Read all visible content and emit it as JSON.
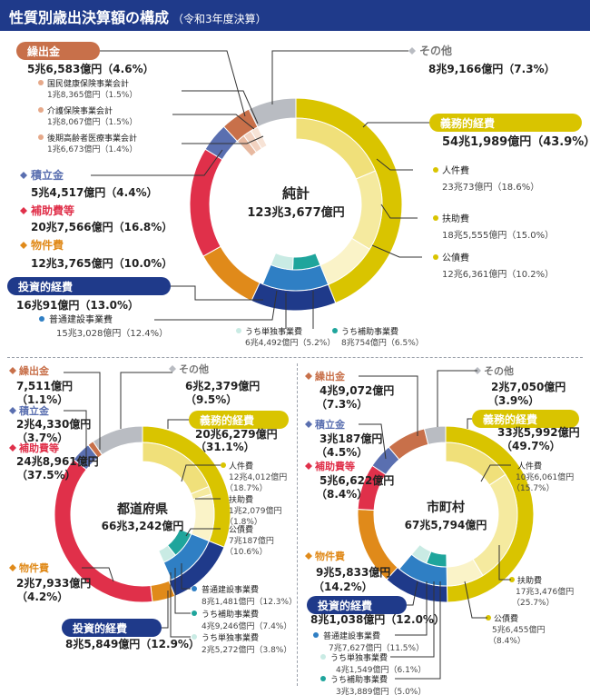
{
  "header": {
    "title": "性質別歳出決算額の構成",
    "subtitle": "（令和3年度決算）"
  },
  "colors": {
    "header": "#1f3a8a",
    "mandatory": "#d9c400",
    "mandatory_light1": "#f0e07a",
    "mandatory_light2": "#f5ea9f",
    "mandatory_light3": "#faf3c8",
    "investment": "#1f3a8a",
    "investment_light": "#2f7fc4",
    "investment_teal": "#1fa59c",
    "investment_pale": "#c9ebe4",
    "materials": "#e08a1a",
    "subsidy": "#e0304a",
    "reserve": "#5a6fb0",
    "transfer": "#c8704a",
    "transfer_light": "#e8b9a0",
    "other": "#b9bcc2"
  },
  "chart_data": [
    {
      "type": "pie",
      "name": "純計",
      "total_label": "123兆3,677億円",
      "categories": [
        "義務的経費",
        "投資的経費",
        "物件費",
        "補助費等",
        "積立金",
        "繰出金",
        "その他"
      ],
      "values": [
        43.9,
        13.0,
        10.0,
        16.8,
        4.4,
        4.6,
        7.3
      ],
      "amounts": [
        "54兆1,989億円（43.9%）",
        "16兆91億円（13.0%）",
        "12兆3,765億円（10.0%）",
        "20兆7,566億円（16.8%）",
        "5兆4,517億円（4.4%）",
        "5兆6,583億円（4.6%）",
        "8兆9,166億円（7.3%）"
      ],
      "inner_series": {
        "義務的経費": [
          {
            "name": "人件費",
            "value": 18.6,
            "amount": "23兆73億円（18.6%）"
          },
          {
            "name": "扶助費",
            "value": 15.0,
            "amount": "18兆5,555億円（15.0%）"
          },
          {
            "name": "公債費",
            "value": 10.2,
            "amount": "12兆6,361億円（10.2%）"
          }
        ],
        "投資的経費": [
          {
            "name": "普通建設事業費",
            "value": 12.4,
            "amount": "15兆3,028億円（12.4%）"
          },
          {
            "name": "うち補助事業費",
            "value": 6.5,
            "amount": "8兆754億円（6.5%）"
          },
          {
            "name": "うち単独事業費",
            "value": 5.2,
            "amount": "6兆4,492億円（5.2%）"
          }
        ],
        "繰出金": [
          {
            "name": "国民健康保険事業会計",
            "value": 1.5,
            "amount": "1兆8,365億円（1.5%）"
          },
          {
            "name": "介護保険事業会計",
            "value": 1.5,
            "amount": "1兆8,067億円（1.5%）"
          },
          {
            "name": "後期高齢者医療事業会計",
            "value": 1.4,
            "amount": "1兆6,673億円（1.4%）"
          }
        ]
      }
    },
    {
      "type": "pie",
      "name": "都道府県",
      "total_label": "66兆3,242億円",
      "categories": [
        "義務的経費",
        "投資的経費",
        "物件費",
        "補助費等",
        "積立金",
        "繰出金",
        "その他"
      ],
      "values": [
        31.1,
        12.9,
        4.2,
        37.5,
        3.7,
        1.1,
        9.5
      ],
      "amounts": [
        "20兆6,279億円（31.1%）",
        "8兆5,849億円（12.9%）",
        "2兆7,933億円（4.2%）",
        "24兆8,961億円（37.5%）",
        "2兆4,330億円（3.7%）",
        "7,511億円（1.1%）",
        "6兆2,379億円（9.5%）"
      ],
      "inner_series": {
        "義務的経費": [
          {
            "name": "人件費",
            "value": 18.7,
            "amount": "12兆4,012億円（18.7%）"
          },
          {
            "name": "扶助費",
            "value": 1.8,
            "amount": "1兆2,079億円（1.8%）"
          },
          {
            "name": "公債費",
            "value": 10.6,
            "amount": "7兆187億円（10.6%）"
          }
        ],
        "投資的経費": [
          {
            "name": "普通建設事業費",
            "value": 12.3,
            "amount": "8兆1,481億円（12.3%）"
          },
          {
            "name": "うち補助事業費",
            "value": 7.4,
            "amount": "4兆9,246億円（7.4%）"
          },
          {
            "name": "うち単独事業費",
            "value": 3.8,
            "amount": "2兆5,272億円（3.8%）"
          }
        ]
      }
    },
    {
      "type": "pie",
      "name": "市町村",
      "total_label": "67兆5,794億円",
      "categories": [
        "義務的経費",
        "投資的経費",
        "物件費",
        "補助費等",
        "積立金",
        "繰出金",
        "その他"
      ],
      "values": [
        49.7,
        12.0,
        14.2,
        8.4,
        4.5,
        7.3,
        3.9
      ],
      "amounts": [
        "33兆5,992億円（49.7%）",
        "8兆1,038億円（12.0%）",
        "9兆5,833億円（14.2%）",
        "5兆6,622億円（8.4%）",
        "3兆187億円（4.5%）",
        "4兆9,072億円（7.3%）",
        "2兆7,050億円（3.9%）"
      ],
      "inner_series": {
        "義務的経費": [
          {
            "name": "人件費",
            "value": 15.7,
            "amount": "10兆6,061億円（15.7%）"
          },
          {
            "name": "扶助費",
            "value": 25.7,
            "amount": "17兆3,476億円（25.7%）"
          },
          {
            "name": "公債費",
            "value": 8.4,
            "amount": "5兆6,455億円（8.4%）"
          }
        ],
        "投資的経費": [
          {
            "name": "普通建設事業費",
            "value": 11.5,
            "amount": "7兆7,627億円（11.5%）"
          },
          {
            "name": "うち単独事業費",
            "value": 6.1,
            "amount": "4兆1,549億円（6.1%）"
          },
          {
            "name": "うち補助事業費",
            "value": 5.0,
            "amount": "3兆3,889億円（5.0%）"
          }
        ]
      }
    }
  ]
}
